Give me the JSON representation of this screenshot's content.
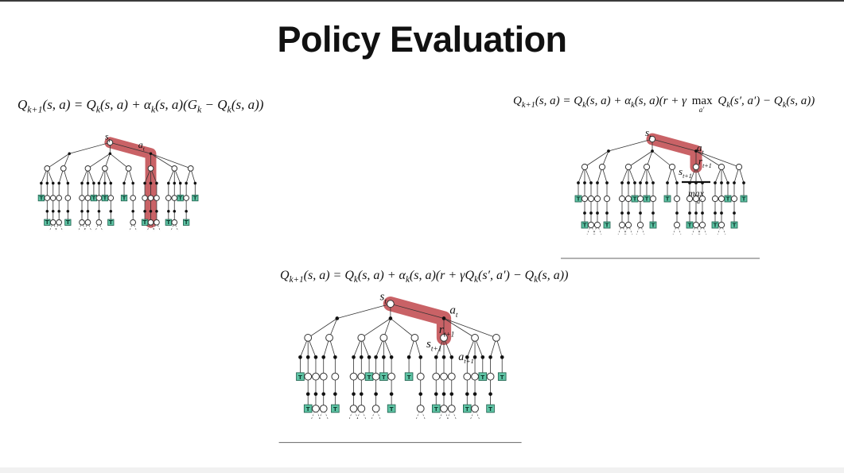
{
  "title": "Policy Evaluation",
  "formulas": {
    "monte_carlo": "Q_{k+1}(s,a) = Q_k(s,a) + α_k(s,a)(G_k − Q_k(s,a))",
    "q_learning": "Q_{k+1}(s,a) = Q_k(s,a) + α_k(s,a)(r + γ max_{a'} Q_k(s',a') − Q_k(s,a))",
    "sarsa": "Q_{k+1}(s,a) = Q_k(s,a) + α_k(s,a)(r + γQ_k(s',a') − Q_k(s,a))"
  },
  "labels": {
    "s_t": "s",
    "t": "t",
    "a_t": "a",
    "r": "r",
    "t_plus_1": "t+1",
    "s_t1": "s",
    "a_t1": "a",
    "max": "max",
    "a_prime": "a′",
    "terminal": "T"
  },
  "colors": {
    "highlight": "#c0464b",
    "terminal_fill": "#5ec3a4",
    "terminal_stroke": "#1f5e4c",
    "text": "#111111"
  }
}
